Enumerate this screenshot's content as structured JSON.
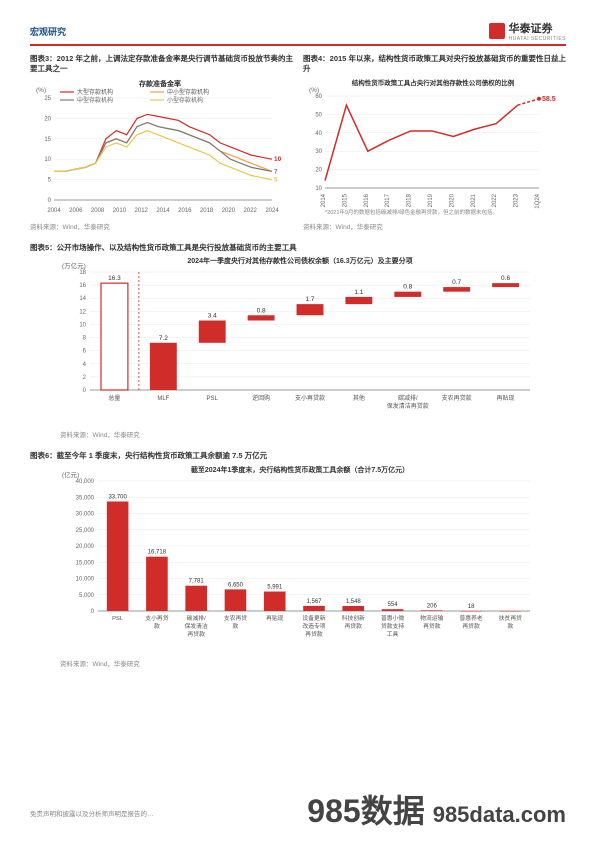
{
  "header": {
    "section": "宏观研究",
    "brand": "华泰证券",
    "brand_en": "HUATAI SECURITIES"
  },
  "chart3": {
    "title_prefix": "图表3：",
    "title": "2012 年之前，上调法定存款准备金率是央行调节基础货币投放节奏的主要工具之一",
    "type": "line",
    "y_label": "(%)",
    "subtitle": "存款准备金率",
    "xlim": [
      2004,
      2024
    ],
    "ylim": [
      0,
      25
    ],
    "ytick_step": 5,
    "x_ticks": [
      2004,
      2006,
      2008,
      2010,
      2012,
      2014,
      2016,
      2018,
      2020,
      2022,
      2024
    ],
    "legend": [
      "大型存款机构",
      "中小型存款机构",
      "中型存款机构",
      "小型存款机构"
    ],
    "legend_colors": [
      "#d02c2a",
      "#f3a13a",
      "#7a7a7a",
      "#e8c84a"
    ],
    "end_labels": [
      {
        "v": 10,
        "c": "#d02c2a"
      },
      {
        "v": 7,
        "c": "#7a7a7a"
      },
      {
        "v": 5,
        "c": "#e8c84a"
      }
    ],
    "series": {
      "large": [
        7,
        7,
        7.5,
        8,
        9,
        15,
        17,
        16,
        20,
        21,
        20.5,
        20,
        19.5,
        18,
        17,
        16,
        14,
        13,
        12,
        11,
        10.5,
        10
      ],
      "medsmall": [
        7,
        7,
        7.5,
        8,
        9,
        14,
        15,
        14,
        18,
        19,
        18,
        17.5,
        17,
        16,
        15,
        14,
        12,
        11,
        10,
        9,
        8,
        7
      ],
      "med": [
        7,
        7,
        7.5,
        8,
        9,
        14,
        15,
        14,
        18,
        19,
        18,
        17.5,
        17,
        16,
        15,
        14,
        12,
        10,
        9,
        8,
        7.5,
        7
      ],
      "small": [
        7,
        7,
        7.5,
        8,
        9,
        13,
        14,
        13,
        16,
        17,
        16,
        15,
        14,
        13,
        12,
        11,
        9,
        8,
        7,
        6,
        5.5,
        5
      ]
    },
    "source": "资料来源：Wind，华泰研究"
  },
  "chart4": {
    "title_prefix": "图表4：",
    "title": "2015 年以来，结构性货币政策工具对央行投放基础货币的重要性日益上升",
    "type": "line",
    "subtitle": "结构性货币政策工具占央行对其他存款性公司债权的比例",
    "y_label": "(%)",
    "xlim_labels": [
      "2014",
      "2015",
      "2016",
      "2017",
      "2018",
      "2019",
      "2020",
      "2021",
      "2022",
      "2023",
      "1Q24"
    ],
    "ylim": [
      10,
      60
    ],
    "ytick_step": 10,
    "line_color": "#d02c2a",
    "data": [
      14,
      55,
      30,
      36,
      41,
      41,
      38,
      42,
      45,
      55,
      58.5
    ],
    "end_label": "58.5",
    "footnote": "*2021年9月的数据包括碳减排/绿色金融再贷款，但之前的数据未包括。",
    "source": "资料来源：Wind，华泰研究"
  },
  "chart5": {
    "title_prefix": "图表5：",
    "title": "公开市场操作、以及结构性货币政策工具是央行投放基础货币的主要工具",
    "subtitle": "2024年一季度央行对其他存款性公司债权余额（16.3万亿元）及主要分项",
    "type": "bar",
    "y_label": "(万亿元)",
    "ylim": [
      0,
      18
    ],
    "ytick_step": 2,
    "categories": [
      "总量",
      "MLF",
      "PSL",
      "逆回购",
      "支小再贷款",
      "其他",
      "碳减排/保发清洁再贷款",
      "支农再贷款",
      "再贴现"
    ],
    "values": [
      16.3,
      7.2,
      3.4,
      0.8,
      1.7,
      1.1,
      0.8,
      0.7,
      0.6
    ],
    "cumulative": [
      0,
      0,
      7.2,
      10.6,
      11.4,
      13.1,
      14.2,
      15.0,
      15.7
    ],
    "bar_colors": [
      "#ffffff",
      "#d02c2a",
      "#d02c2a",
      "#d02c2a",
      "#d02c2a",
      "#d02c2a",
      "#d02c2a",
      "#d02c2a",
      "#d02c2a"
    ],
    "first_outline": "#d02c2a",
    "source": "资料来源：Wind，华泰研究"
  },
  "chart6": {
    "title_prefix": "图表6：",
    "title": "截至今年 1 季度末，央行结构性货币政策工具余额逾 7.5 万亿元",
    "subtitle": "截至2024年1季度末，央行结构性货币政策工具余额（合计7.5万亿元）",
    "type": "bar",
    "y_label": "(亿元)",
    "ylim": [
      0,
      40000
    ],
    "ytick_step": 5000,
    "categories": [
      "PSL",
      "支小再贷款",
      "碳减排/保发清洁再贷款",
      "支农再贷款",
      "再贴现",
      "设备更新改造专项再贷款",
      "科技创新再贷款",
      "普惠小微贷款支持工具",
      "物流运输再贷款",
      "普惠养老再贷款",
      "扶贫再贷款"
    ],
    "values": [
      33700,
      16718,
      7781,
      6650,
      5991,
      1567,
      1548,
      554,
      206,
      18,
      0
    ],
    "bar_color": "#d02c2a",
    "source": "资料来源：Wind，华泰研究"
  },
  "footer": {
    "disclaimer": "免责声明和披露以及分析师声明是报告的…",
    "watermark1": "985数据",
    "watermark2": "985data.com"
  }
}
